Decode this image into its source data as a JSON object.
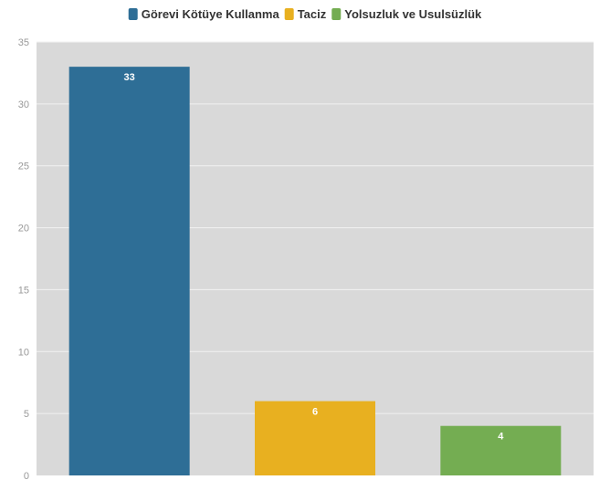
{
  "chart_data": {
    "type": "bar",
    "title": "",
    "xlabel": "",
    "ylabel": "",
    "ylim": [
      0,
      35
    ],
    "yticks": [
      0,
      5,
      10,
      15,
      20,
      25,
      30,
      35
    ],
    "grid": true,
    "legend_position": "top-center",
    "plot_background": "#d9d9d9",
    "series": [
      {
        "name": "Görevi Kötüye Kullanma",
        "value": 33,
        "color": "#2e6e96"
      },
      {
        "name": "Taciz",
        "value": 6,
        "color": "#e8b020"
      },
      {
        "name": "Yolsuzluk ve Usulsüzlük",
        "value": 4,
        "color": "#74ad52"
      }
    ]
  }
}
